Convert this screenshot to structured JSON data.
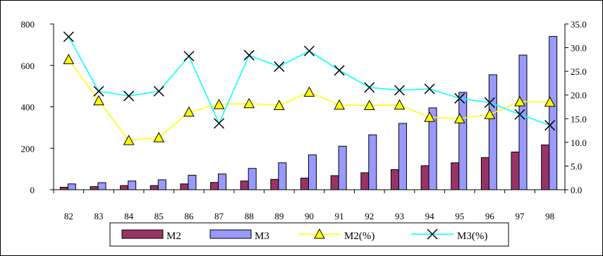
{
  "chart_data": {
    "type": "bar",
    "categories": [
      "82",
      "83",
      "84",
      "85",
      "86",
      "87",
      "88",
      "89",
      "90",
      "91",
      "92",
      "93",
      "94",
      "95",
      "96",
      "97",
      "98"
    ],
    "y_left": {
      "ylim": [
        0,
        800
      ],
      "ticks": [
        "0",
        "200",
        "400",
        "600",
        "800"
      ]
    },
    "y_right": {
      "ylim": [
        0,
        35
      ],
      "ticks": [
        "0.0",
        "5.0",
        "10.0",
        "15.0",
        "20.0",
        "25.0",
        "30.0",
        "35.0"
      ]
    },
    "series": [
      {
        "name": "M2",
        "type": "bar",
        "axis": "left",
        "color": "#993366",
        "values": [
          12,
          15,
          20,
          20,
          28,
          35,
          42,
          50,
          56,
          68,
          82,
          97,
          116,
          130,
          155,
          182,
          216
        ]
      },
      {
        "name": "M3",
        "type": "bar",
        "axis": "left",
        "color": "#9999ff",
        "values": [
          28,
          34,
          42,
          48,
          70,
          76,
          103,
          130,
          168,
          210,
          265,
          320,
          395,
          470,
          555,
          650,
          740
        ]
      },
      {
        "name": "M2(%)",
        "type": "line",
        "axis": "right",
        "color": "#ffff00",
        "marker": "triangle",
        "values": [
          27.5,
          18.8,
          10.4,
          11.0,
          16.4,
          18.0,
          18.2,
          17.8,
          20.6,
          17.9,
          17.8,
          17.9,
          15.3,
          15.0,
          15.9,
          18.6,
          18.5
        ]
      },
      {
        "name": "M3(%)",
        "type": "line",
        "axis": "right",
        "color": "#00ffff",
        "marker": "x",
        "values": [
          32.3,
          20.8,
          19.8,
          20.8,
          28.2,
          14.0,
          28.4,
          26.0,
          29.3,
          25.2,
          21.6,
          21.0,
          21.3,
          19.3,
          18.4,
          15.9,
          13.6
        ]
      }
    ],
    "legend": {
      "position": "bottom",
      "entries": [
        "M2",
        "M3",
        "M2(%)",
        "M3(%)"
      ]
    }
  }
}
